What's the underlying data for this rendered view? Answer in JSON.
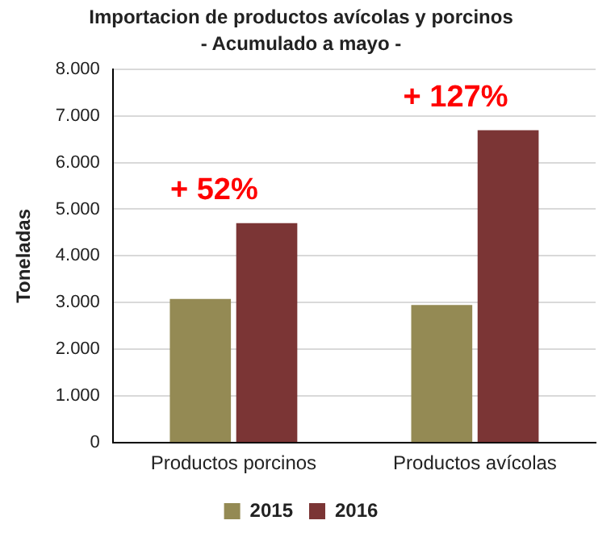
{
  "chart_data": {
    "type": "bar",
    "title": "Importacion de productos avícolas y porcinos",
    "subtitle": "- Acumulado a mayo -",
    "ylabel": "Toneladas",
    "categories": [
      "Productos porcinos",
      "Productos avícolas"
    ],
    "series": [
      {
        "name": "2015",
        "color": "#948a54",
        "values": [
          3080,
          2950
        ]
      },
      {
        "name": "2016",
        "color": "#7b3535",
        "values": [
          4700,
          6690
        ]
      }
    ],
    "ylim": [
      0,
      8000
    ],
    "yticks": [
      0,
      {
        "value": 1000,
        "label": "1.000"
      },
      {
        "value": 2000,
        "label": "2.000"
      },
      {
        "value": 3000,
        "label": "3.000"
      },
      {
        "value": 4000,
        "label": "4.000"
      },
      {
        "value": 5000,
        "label": "5.000"
      },
      {
        "value": 6000,
        "label": "6.000"
      },
      {
        "value": 7000,
        "label": "7.000"
      },
      {
        "value": 8000,
        "label": "8.000"
      }
    ],
    "grid": "y",
    "legend": "bottom",
    "annotations": [
      "+ 52%",
      "+ 127%"
    ]
  }
}
